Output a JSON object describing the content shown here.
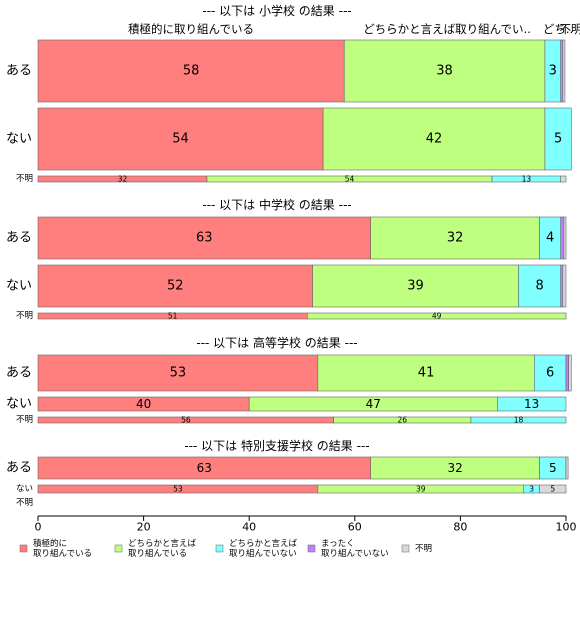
{
  "chart_data": {
    "type": "bar",
    "orientation": "horizontal",
    "stacked": true,
    "xlim": [
      0,
      100
    ],
    "x_ticks": [
      "0",
      "20",
      "40",
      "60",
      "80",
      "100"
    ],
    "top_labels": [
      "積極的に取り組んでいる",
      "どちらかと言えば取り組んでい..",
      "どち..",
      "不明"
    ],
    "legend_position": "bottom",
    "series": [
      {
        "name": "積極的に\n取り組んでいる",
        "color": "#ff7f7f"
      },
      {
        "name": "どちらかと言えば\n取り組んでいる",
        "color": "#bfff7f"
      },
      {
        "name": "どちらかと言えば\n取り組んでいない",
        "color": "#7fffff"
      },
      {
        "name": "まったく\n取り組んでいない",
        "color": "#bf7fff"
      },
      {
        "name": "不明",
        "color": "#d9d9d9"
      }
    ],
    "groups": [
      {
        "title": "--- 以下は 小学校 の結果 ---",
        "bars": [
          {
            "label": "ある",
            "values": [
              58,
              38,
              3,
              0.4,
              0.4
            ],
            "labels": [
              "58",
              "38",
              "3",
              "",
              ""
            ]
          },
          {
            "label": "ない",
            "values": [
              54,
              42,
              5,
              0,
              0
            ],
            "labels": [
              "54",
              "42",
              "5",
              "",
              ""
            ]
          },
          {
            "label": "不明",
            "values": [
              32,
              54,
              13,
              0,
              1
            ],
            "labels": [
              "32",
              "54",
              "13",
              "",
              ""
            ]
          }
        ]
      },
      {
        "title": "--- 以下は 中学校 の結果 ---",
        "bars": [
          {
            "label": "ある",
            "values": [
              63,
              32,
              4,
              0.6,
              0.4
            ],
            "labels": [
              "63",
              "32",
              "4",
              "",
              ""
            ]
          },
          {
            "label": "ない",
            "values": [
              52,
              39,
              8,
              0.4,
              0.6
            ],
            "labels": [
              "52",
              "39",
              "8",
              "",
              ""
            ]
          },
          {
            "label": "不明",
            "values": [
              51,
              49,
              0,
              0,
              0
            ],
            "labels": [
              "51",
              "49",
              "",
              "",
              ""
            ]
          }
        ]
      },
      {
        "title": "--- 以下は 高等学校 の結果 ---",
        "bars": [
          {
            "label": "ある",
            "values": [
              53,
              41,
              6,
              0.5,
              0.5
            ],
            "labels": [
              "53",
              "41",
              "6",
              "",
              ""
            ]
          },
          {
            "label": "ない",
            "values": [
              40,
              47,
              13,
              0,
              0
            ],
            "labels": [
              "40",
              "47",
              "13",
              "",
              ""
            ]
          },
          {
            "label": "不明",
            "values": [
              56,
              26,
              18,
              0,
              0
            ],
            "labels": [
              "56",
              "26",
              "18",
              "",
              ""
            ]
          }
        ]
      },
      {
        "title": "--- 以下は 特別支援学校 の結果 ---",
        "bars": [
          {
            "label": "ある",
            "values": [
              63,
              32,
              5,
              0,
              0.4
            ],
            "labels": [
              "63",
              "32",
              "5",
              "",
              ""
            ]
          },
          {
            "label": "ない",
            "values": [
              53,
              39,
              3,
              0,
              5
            ],
            "labels": [
              "53",
              "39",
              "3",
              "",
              "5"
            ]
          },
          {
            "label": "不明",
            "values": [],
            "labels": []
          }
        ]
      }
    ]
  }
}
